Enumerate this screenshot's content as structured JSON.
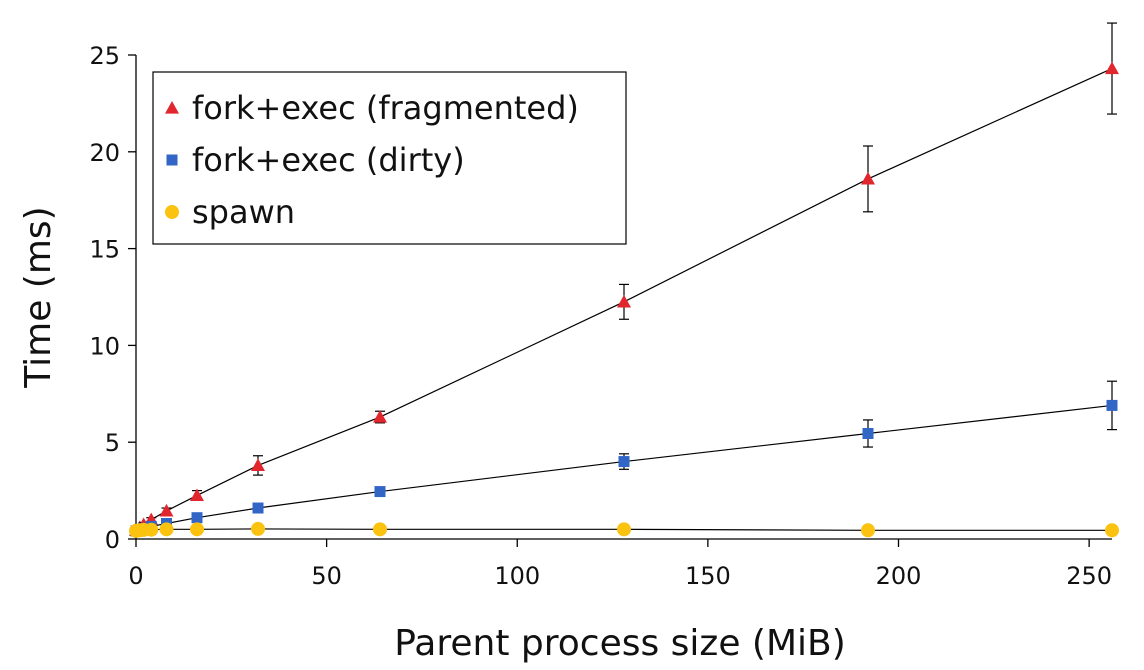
{
  "chart_data": {
    "type": "line",
    "xlabel": "Parent process size (MiB)",
    "ylabel": "Time (ms)",
    "xlim": [
      0,
      256
    ],
    "ylim": [
      0,
      25
    ],
    "xticks": [
      0,
      50,
      100,
      150,
      200,
      250
    ],
    "yticks": [
      0,
      5,
      10,
      15,
      20,
      25
    ],
    "grid": false,
    "legend_position": "top-left",
    "series": [
      {
        "name": "fork+exec (fragmented)",
        "marker": "triangle",
        "color": "#e2262e",
        "points": [
          {
            "x": 0,
            "y": 0.45,
            "err": 0.05
          },
          {
            "x": 1,
            "y": 0.6,
            "err": 0.05
          },
          {
            "x": 2,
            "y": 0.75,
            "err": 0.1
          },
          {
            "x": 4,
            "y": 1.0,
            "err": 0.1
          },
          {
            "x": 8,
            "y": 1.45,
            "err": 0.15
          },
          {
            "x": 16,
            "y": 2.25,
            "err": 0.25
          },
          {
            "x": 32,
            "y": 3.8,
            "err": 0.5
          },
          {
            "x": 64,
            "y": 6.3,
            "err": 0.3
          },
          {
            "x": 128,
            "y": 12.25,
            "err": 0.9
          },
          {
            "x": 192,
            "y": 18.6,
            "err": 1.7
          },
          {
            "x": 256,
            "y": 24.3,
            "err": 2.35
          }
        ]
      },
      {
        "name": "fork+exec (dirty)",
        "marker": "square",
        "color": "#3266c6",
        "points": [
          {
            "x": 0,
            "y": 0.42,
            "err": 0.03
          },
          {
            "x": 1,
            "y": 0.5,
            "err": 0.03
          },
          {
            "x": 2,
            "y": 0.55,
            "err": 0.05
          },
          {
            "x": 4,
            "y": 0.65,
            "err": 0.05
          },
          {
            "x": 8,
            "y": 0.8,
            "err": 0.08
          },
          {
            "x": 16,
            "y": 1.1,
            "err": 0.1
          },
          {
            "x": 32,
            "y": 1.6,
            "err": 0.15
          },
          {
            "x": 64,
            "y": 2.45,
            "err": 0.2
          },
          {
            "x": 128,
            "y": 4.0,
            "err": 0.4
          },
          {
            "x": 192,
            "y": 5.45,
            "err": 0.7
          },
          {
            "x": 256,
            "y": 6.9,
            "err": 1.25
          }
        ]
      },
      {
        "name": "spawn",
        "marker": "circle",
        "color": "#fbc20f",
        "points": [
          {
            "x": 0,
            "y": 0.42,
            "err": 0.05
          },
          {
            "x": 1,
            "y": 0.45,
            "err": 0.05
          },
          {
            "x": 2,
            "y": 0.47,
            "err": 0.05
          },
          {
            "x": 4,
            "y": 0.48,
            "err": 0.05
          },
          {
            "x": 8,
            "y": 0.5,
            "err": 0.05
          },
          {
            "x": 16,
            "y": 0.5,
            "err": 0.05
          },
          {
            "x": 32,
            "y": 0.52,
            "err": 0.05
          },
          {
            "x": 64,
            "y": 0.5,
            "err": 0.05
          },
          {
            "x": 128,
            "y": 0.5,
            "err": 0.05
          },
          {
            "x": 192,
            "y": 0.45,
            "err": 0.05
          },
          {
            "x": 256,
            "y": 0.45,
            "err": 0.05
          }
        ]
      }
    ]
  }
}
